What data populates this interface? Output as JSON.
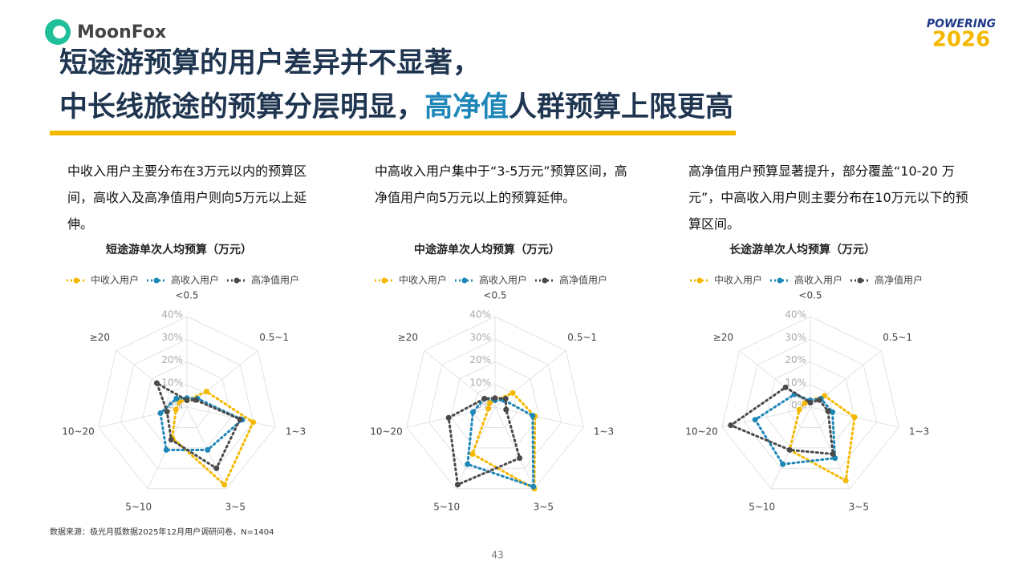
{
  "header": {
    "logo": "MoonFox",
    "badge_top": "POWERING",
    "badge_bottom": "2026",
    "title_line1": "短途游预算的用户差异并不显著，",
    "title_line2": [
      "中长线旅途的预算分层明显，",
      "高净值",
      "人群预算上限更高"
    ]
  },
  "descriptions": [
    "中收入用户主要分布在3万元以内的预算区间，高收入及高净值用户则向5万元以上延伸。",
    "中高收入用户集中于“3-5万元”预算区间，高净值用户向5万元以上的预算延伸。",
    "高净值用户预算显著提升，部分覆盖“10-20 万元”，中高收入用户则主要分布在10万元以下的预算区间。"
  ],
  "source": "数据来源：极光月狐数据2025年12月用户调研问卷，N=1404",
  "page_number": "43",
  "chart_data": [
    {
      "type": "radar",
      "title": "短途游单次人均预算（万元）",
      "categories": [
        "<0.5",
        "0.5~1",
        "1~3",
        "3~5",
        "5~10",
        "10~20",
        "≥20"
      ],
      "rlim": [
        0,
        40
      ],
      "rticks": [
        {
          "value": 0,
          "label": "0%"
        },
        {
          "value": 10,
          "label": "10%"
        },
        {
          "value": 20,
          "label": "20%"
        },
        {
          "value": 30,
          "label": "30%"
        },
        {
          "value": 40,
          "label": "40%"
        }
      ],
      "series": [
        {
          "name": "中收入用户",
          "color": "#f5b800",
          "values": [
            3,
            11,
            30,
            38,
            15,
            5,
            4
          ]
        },
        {
          "name": "高收入用户",
          "color": "#1f87b8",
          "values": [
            4,
            6,
            25,
            21,
            21,
            12,
            6
          ]
        },
        {
          "name": "高净值用户",
          "color": "#4a4a4a",
          "values": [
            3,
            5,
            24,
            30,
            16,
            9,
            17
          ]
        }
      ]
    },
    {
      "type": "radar",
      "title": "中途游单次人均预算（万元）",
      "categories": [
        "<0.5",
        "0.5~1",
        "1~3",
        "3~5",
        "5~10",
        "10~20",
        "≥20"
      ],
      "rlim": [
        0,
        40
      ],
      "rticks": [
        {
          "value": 0,
          "label": "0%"
        },
        {
          "value": 10,
          "label": "10%"
        },
        {
          "value": 20,
          "label": "20%"
        },
        {
          "value": 30,
          "label": "30%"
        },
        {
          "value": 40,
          "label": "40%"
        }
      ],
      "series": [
        {
          "name": "中收入用户",
          "color": "#f5b800",
          "values": [
            3,
            10,
            18,
            40,
            23,
            3,
            3
          ]
        },
        {
          "name": "高收入用户",
          "color": "#1f87b8",
          "values": [
            3,
            5,
            17,
            39,
            28,
            10,
            6
          ]
        },
        {
          "name": "高净值用户",
          "color": "#4a4a4a",
          "values": [
            4,
            6,
            5,
            25,
            38,
            21,
            6
          ]
        }
      ]
    },
    {
      "type": "radar",
      "title": "长途游单次人均预算（万元）",
      "categories": [
        "<0.5",
        "0.5~1",
        "1~3",
        "3~5",
        "5~10",
        "10~20",
        "≥20"
      ],
      "rlim": [
        0,
        40
      ],
      "rticks": [
        {
          "value": 0,
          "label": "0%"
        },
        {
          "value": 10,
          "label": "10%"
        },
        {
          "value": 20,
          "label": "20%"
        },
        {
          "value": 30,
          "label": "30%"
        },
        {
          "value": 40,
          "label": "40%"
        }
      ],
      "series": [
        {
          "name": "中收入用户",
          "color": "#f5b800",
          "values": [
            3,
            8,
            20,
            36,
            21,
            5,
            3
          ]
        },
        {
          "name": "高收入用户",
          "color": "#1f87b8",
          "values": [
            3,
            6,
            10,
            25,
            28,
            25,
            9
          ]
        },
        {
          "name": "高净值用户",
          "color": "#4a4a4a",
          "values": [
            2,
            5,
            8,
            23,
            21,
            36,
            14
          ]
        }
      ]
    }
  ]
}
